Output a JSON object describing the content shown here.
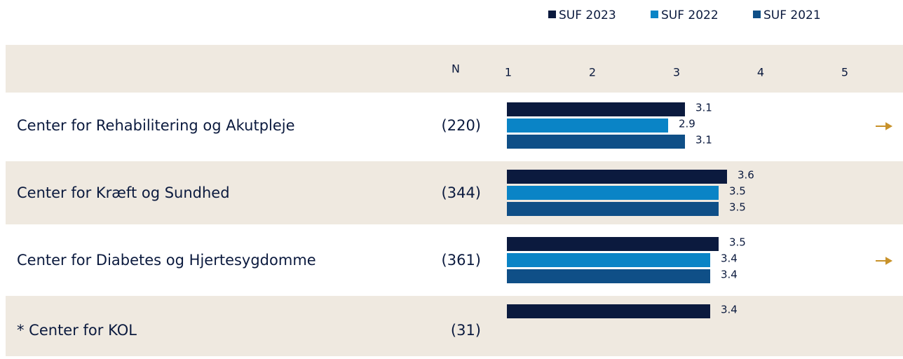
{
  "chart_data": {
    "type": "bar",
    "orientation": "horizontal",
    "n_header": "N",
    "categories": [
      "Center for Rehabilitering og Akutpleje",
      "Center for Kræft og Sundhed",
      "Center for Diabetes og Hjertesygdomme",
      "* Center for KOL"
    ],
    "n": [
      "(220)",
      "(344)",
      "(361)",
      "(31)"
    ],
    "series": [
      {
        "name": "SUF 2023",
        "color": "#0b1a3e",
        "values": [
          3.1,
          3.6,
          3.5,
          3.4
        ]
      },
      {
        "name": "SUF 2022",
        "color": "#0a84c6",
        "values": [
          2.9,
          3.5,
          3.4,
          null
        ]
      },
      {
        "name": "SUF 2021",
        "color": "#0f4f87",
        "values": [
          3.1,
          3.5,
          3.4,
          null
        ]
      }
    ],
    "xlim": [
      1,
      5
    ],
    "xticks": [
      1,
      2,
      3,
      4,
      5
    ]
  }
}
